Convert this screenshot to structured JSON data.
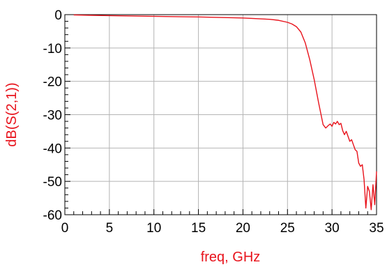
{
  "chart_data": {
    "type": "line",
    "title": "",
    "xlabel": "freq, GHz",
    "ylabel": "dB(S(2,1))",
    "xlim": [
      0,
      35
    ],
    "ylim": [
      -60,
      0
    ],
    "x_ticks": [
      "0",
      "5",
      "10",
      "15",
      "20",
      "25",
      "30",
      "35"
    ],
    "y_ticks": [
      "0",
      "-10",
      "-20",
      "-30",
      "-40",
      "-50",
      "-60"
    ],
    "x_tick_values": [
      0,
      5,
      10,
      15,
      20,
      25,
      30,
      35
    ],
    "y_tick_values": [
      0,
      -10,
      -20,
      -30,
      -40,
      -50,
      -60
    ],
    "x_minor_step": 1,
    "y_minor_step": 2,
    "grid": true,
    "colors": {
      "series": "#e8121b",
      "grid": "#b4b4b4",
      "label": "#e8121b"
    },
    "series": [
      {
        "x": [
          1,
          5,
          10,
          15,
          20,
          23,
          24,
          25,
          25.5,
          26,
          26.5,
          27,
          27.5,
          28,
          28.5,
          29,
          29.3,
          29.6,
          29.8,
          30,
          30.2,
          30.4,
          30.6,
          30.8,
          31,
          31.2,
          31.4,
          31.6,
          31.8,
          32,
          32.2,
          32.4,
          32.6,
          32.8,
          33,
          33.2,
          33.4,
          33.6,
          33.8,
          34,
          34.2,
          34.4,
          34.6,
          34.8,
          35
        ],
        "y": [
          -0.1,
          -0.3,
          -0.5,
          -0.7,
          -1.0,
          -1.4,
          -1.7,
          -2.3,
          -2.8,
          -3.6,
          -5.2,
          -8.5,
          -13.5,
          -19.5,
          -26.5,
          -33.0,
          -34.0,
          -33.2,
          -32.8,
          -33.5,
          -32.3,
          -32.8,
          -32.0,
          -33.0,
          -32.6,
          -34.8,
          -36.0,
          -35.0,
          -36.5,
          -38.0,
          -37.5,
          -39.0,
          -40.5,
          -41.0,
          -44.5,
          -45.5,
          -45.0,
          -49.5,
          -58.0,
          -51.5,
          -53.0,
          -58.5,
          -51.0,
          -57.0,
          -47.0
        ]
      }
    ]
  }
}
